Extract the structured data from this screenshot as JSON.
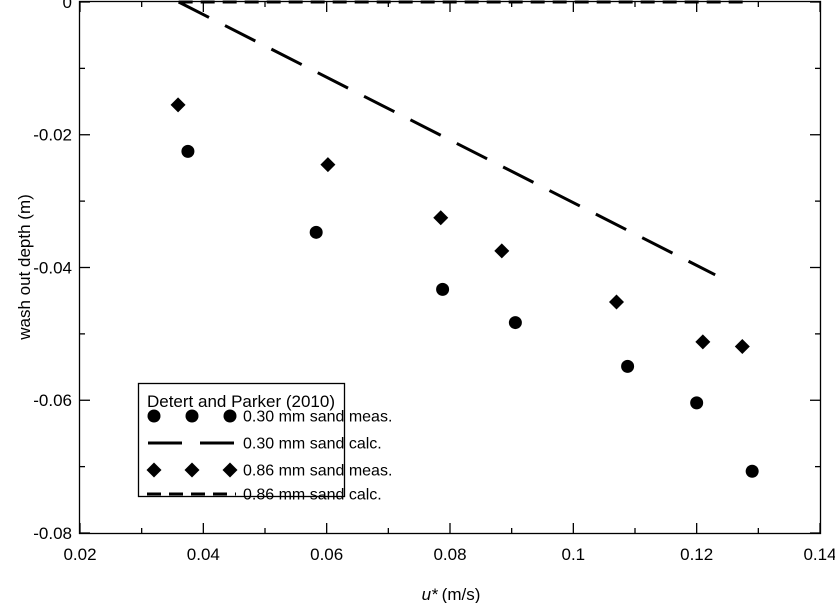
{
  "chart_data": {
    "type": "scatter",
    "xlabel_symbol": "u*",
    "xlabel_unit": "(m/s)",
    "ylabel": "wash out depth (m)",
    "xlim": [
      0.02,
      0.14
    ],
    "ylim": [
      -0.08,
      0.0
    ],
    "x_ticks": [
      0.02,
      0.04,
      0.06,
      0.08,
      0.1,
      0.12,
      0.14
    ],
    "x_tick_labels": [
      "0.02",
      "0.04",
      "0.06",
      "0.08",
      "0.1",
      "0.12",
      "0.14"
    ],
    "y_ticks": [
      -0.08,
      -0.06,
      -0.04,
      -0.02,
      0
    ],
    "y_tick_labels": [
      "-0.08",
      "-0.06",
      "-0.04",
      "-0.02",
      "0"
    ],
    "grid": false,
    "legend": {
      "title": "Detert and Parker (2010)",
      "placement": "bottom-left"
    },
    "series": [
      {
        "name": "0.30 mm sand meas.",
        "kind": "circle-markers",
        "x": [
          0.0375,
          0.0583,
          0.0788,
          0.0906,
          0.1088,
          0.12,
          0.129
        ],
        "y": [
          -0.0225,
          -0.0347,
          -0.0433,
          -0.0483,
          -0.0549,
          -0.0604,
          -0.0707
        ]
      },
      {
        "name": "0.30 mm sand calc.",
        "kind": "long-dash-line",
        "x": [
          0.036,
          0.123
        ],
        "y": [
          0.0,
          -0.0411
        ]
      },
      {
        "name": "0.86 mm sand meas.",
        "kind": "diamond-markers",
        "x": [
          0.0359,
          0.0602,
          0.0785,
          0.0884,
          0.107,
          0.121,
          0.1274
        ],
        "y": [
          -0.0155,
          -0.0245,
          -0.0325,
          -0.0375,
          -0.0452,
          -0.0512,
          -0.0519
        ]
      },
      {
        "name": "0.86 mm sand calc.",
        "kind": "short-dash-line",
        "x": [
          0.036,
          0.128
        ],
        "y": [
          0.0,
          0.0
        ]
      }
    ]
  }
}
